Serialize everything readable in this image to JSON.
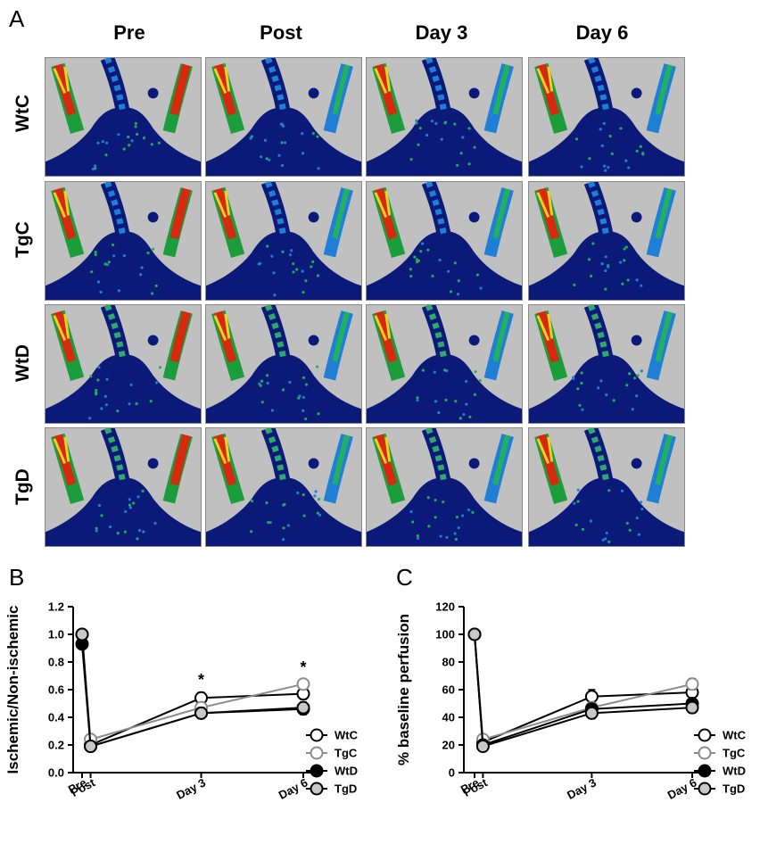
{
  "panel_a": {
    "letter": "A",
    "columns": [
      "Pre",
      "Post",
      "Day 3",
      "Day 6"
    ],
    "rows": [
      "WtC",
      "TgC",
      "WtD",
      "TgD"
    ]
  },
  "chart_data": [
    {
      "panel": "B",
      "type": "line",
      "ylabel": "Ischemic/Non-ischemic",
      "xlabel": "",
      "categories": [
        "Pre",
        "Post",
        "Day 3",
        "Day 6"
      ],
      "x": [
        0,
        1,
        14,
        26
      ],
      "ylim": [
        0,
        1.2
      ],
      "yticks": [
        "0.0",
        "0.2",
        "0.4",
        "0.6",
        "0.8",
        "1.0",
        "1.2"
      ],
      "yticks_values": [
        0,
        0.2,
        0.4,
        0.6,
        0.8,
        1.0,
        1.2
      ],
      "series": [
        {
          "name": "WtC",
          "values": [
            1.0,
            0.2,
            0.54,
            0.57
          ],
          "err": [
            0.01,
            0.02,
            0.04,
            0.04
          ],
          "marker": "white",
          "line": "#000000"
        },
        {
          "name": "TgC",
          "values": [
            1.0,
            0.24,
            0.47,
            0.64
          ],
          "err": [
            0.01,
            0.02,
            0.03,
            0.03
          ],
          "marker": "white-gray",
          "line": "#8c8c8c"
        },
        {
          "name": "WtD",
          "values": [
            0.93,
            0.19,
            0.43,
            0.46
          ],
          "err": [
            0.01,
            0.02,
            0.03,
            0.04
          ],
          "marker": "black",
          "line": "#000000"
        },
        {
          "name": "TgD",
          "values": [
            1.0,
            0.19,
            0.43,
            0.47
          ],
          "err": [
            0.01,
            0.02,
            0.04,
            0.04
          ],
          "marker": "gray",
          "line": "#000000"
        }
      ],
      "annotations": [
        {
          "text": "*",
          "category": "Day 3"
        },
        {
          "text": "*",
          "category": "Day 6"
        }
      ],
      "legend": "right"
    },
    {
      "panel": "C",
      "type": "line",
      "ylabel": "% baseline perfusion",
      "xlabel": "",
      "categories": [
        "Pre",
        "Post",
        "Day 3",
        "Day 6"
      ],
      "x": [
        0,
        1,
        14,
        26
      ],
      "ylim": [
        0,
        120
      ],
      "yticks": [
        "0",
        "20",
        "40",
        "60",
        "80",
        "100",
        "120"
      ],
      "yticks_values": [
        0,
        20,
        40,
        60,
        80,
        100,
        120
      ],
      "series": [
        {
          "name": "WtC",
          "values": [
            100,
            22,
            55,
            58
          ],
          "err": [
            1,
            2,
            5,
            5
          ],
          "marker": "white",
          "line": "#000000"
        },
        {
          "name": "TgC",
          "values": [
            100,
            24,
            47,
            64
          ],
          "err": [
            1,
            2,
            4,
            4
          ],
          "marker": "white-gray",
          "line": "#8c8c8c"
        },
        {
          "name": "WtD",
          "values": [
            100,
            20,
            46,
            50
          ],
          "err": [
            1,
            2,
            4,
            4
          ],
          "marker": "black",
          "line": "#000000"
        },
        {
          "name": "TgD",
          "values": [
            100,
            19,
            43,
            47
          ],
          "err": [
            1,
            2,
            4,
            4
          ],
          "marker": "gray",
          "line": "#000000"
        }
      ],
      "annotations": [],
      "legend": "right"
    }
  ],
  "colors": {
    "tile_background": "#c0c0c0",
    "perfusion_low": "#0b1a78",
    "perfusion_mid": "#1f7fd6",
    "perfusion_high": "#d62a10",
    "marker_gray": "#c8c8c8",
    "line_gray": "#8c8c8c"
  }
}
